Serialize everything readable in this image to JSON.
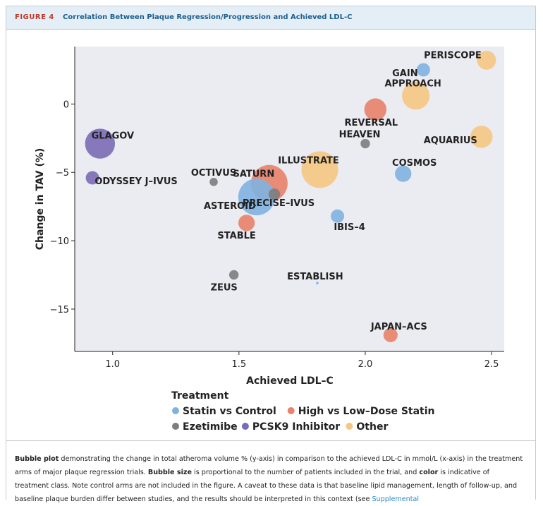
{
  "figure": {
    "label": "FIGURE 4",
    "title": "Correlation Between Plaque Regression/Progression and Achieved LDL-C"
  },
  "chart_data": {
    "type": "scatter",
    "xlabel": "Achieved LDL–C",
    "ylabel": "Change in TAV (%)",
    "xlim": [
      0.85,
      2.55
    ],
    "ylim": [
      -18.1,
      4.2
    ],
    "x_ticks": [
      1.0,
      1.5,
      2.0,
      2.5
    ],
    "x_tick_labels": [
      "1.0",
      "1.5",
      "2.0",
      "2.5"
    ],
    "y_ticks": [
      0,
      -5,
      -10,
      -15
    ],
    "y_tick_labels": [
      "0",
      "−5",
      "−10",
      "−15"
    ],
    "grid": false,
    "legend": {
      "title": "Treatment",
      "placement": "bottom",
      "entries": [
        {
          "name": "Statin vs Control",
          "color": "#7fb2e0"
        },
        {
          "name": "High vs Low–Dose Statin",
          "color": "#e8826a"
        },
        {
          "name": "Ezetimibe",
          "color": "#7d7d7d"
        },
        {
          "name": "PCSK9 Inhibitor",
          "color": "#7b6bb5"
        },
        {
          "name": "Other",
          "color": "#f5c882"
        }
      ]
    },
    "colors": {
      "Statin vs Control": "#7fb2e0",
      "High vs Low–Dose Statin": "#e8826a",
      "Ezetimibe": "#7d7d7d",
      "PCSK9 Inhibitor": "#7b6bb5",
      "Other": "#f5c882",
      "panel": "#ebebf2"
    },
    "points": [
      {
        "label": "PERISCOPE",
        "x": 2.48,
        "y": 3.2,
        "size": 0.16,
        "treatment": "Other"
      },
      {
        "label": "GAIN",
        "x": 2.23,
        "y": 2.5,
        "size": 0.08,
        "treatment": "Statin vs Control"
      },
      {
        "label": "APPROACH",
        "x": 2.2,
        "y": 0.6,
        "size": 0.34,
        "treatment": "Other"
      },
      {
        "label": "REVERSAL",
        "x": 2.04,
        "y": -0.4,
        "size": 0.22,
        "treatment": "High vs Low–Dose Statin"
      },
      {
        "label": "HEAVEN",
        "x": 2.0,
        "y": -2.9,
        "size": 0.04,
        "treatment": "Ezetimibe"
      },
      {
        "label": "AQUARIUS",
        "x": 2.46,
        "y": -2.4,
        "size": 0.22,
        "treatment": "Other"
      },
      {
        "label": "GLAGOV",
        "x": 0.95,
        "y": -2.9,
        "size": 0.4,
        "treatment": "PCSK9 Inhibitor"
      },
      {
        "label": "ODYSSEY J–IVUS",
        "x": 0.92,
        "y": -5.4,
        "size": 0.08,
        "treatment": "PCSK9 Inhibitor"
      },
      {
        "label": "OCTIVUS",
        "x": 1.4,
        "y": -5.7,
        "size": 0.03,
        "treatment": "Ezetimibe"
      },
      {
        "label": "SATURN",
        "x": 1.62,
        "y": -5.8,
        "size": 0.6,
        "treatment": "High vs Low–Dose Statin"
      },
      {
        "label": "ILLUSTRATE",
        "x": 1.82,
        "y": -4.8,
        "size": 0.6,
        "treatment": "Other"
      },
      {
        "label": "COSMOS",
        "x": 2.15,
        "y": -5.1,
        "size": 0.12,
        "treatment": "Statin vs Control"
      },
      {
        "label": "ASTEROID",
        "x": 1.57,
        "y": -6.8,
        "size": 0.6,
        "treatment": "Statin vs Control"
      },
      {
        "label": "PRECISE–IVUS",
        "x": 1.64,
        "y": -6.6,
        "size": 0.06,
        "treatment": "Ezetimibe"
      },
      {
        "label": "IBIS–4",
        "x": 1.89,
        "y": -8.2,
        "size": 0.08,
        "treatment": "Statin vs Control"
      },
      {
        "label": "STABLE",
        "x": 1.53,
        "y": -8.7,
        "size": 0.12,
        "treatment": "High vs Low–Dose Statin"
      },
      {
        "label": "ZEUS",
        "x": 1.48,
        "y": -12.5,
        "size": 0.04,
        "treatment": "Ezetimibe"
      },
      {
        "label": "ESTABLISH",
        "x": 1.81,
        "y": -13.1,
        "size": 0.003,
        "treatment": "Statin vs Control"
      },
      {
        "label": "JAPAN–ACS",
        "x": 2.1,
        "y": -16.9,
        "size": 0.09,
        "treatment": "High vs Low–Dose Statin"
      }
    ]
  },
  "caption": {
    "bold1": "Bubble plot",
    "text1": " demonstrating the change in total atheroma volume % (y-axis) in comparison to the achieved LDL-C in mmol/L (x-axis) in the treatment arms of major plaque regression trials. ",
    "bold2": "Bubble size",
    "text2": " is proportional to the number of patients included in the trial, and ",
    "bold3": "color",
    "text3": " is indicative of treatment class. Note control arms are not included in the figure. A caveat to these data is that baseline lipid management, length of follow-up, and baseline plaque burden differ between studies, and the results should be interpreted in this context (see ",
    "link": "Supplemental"
  }
}
